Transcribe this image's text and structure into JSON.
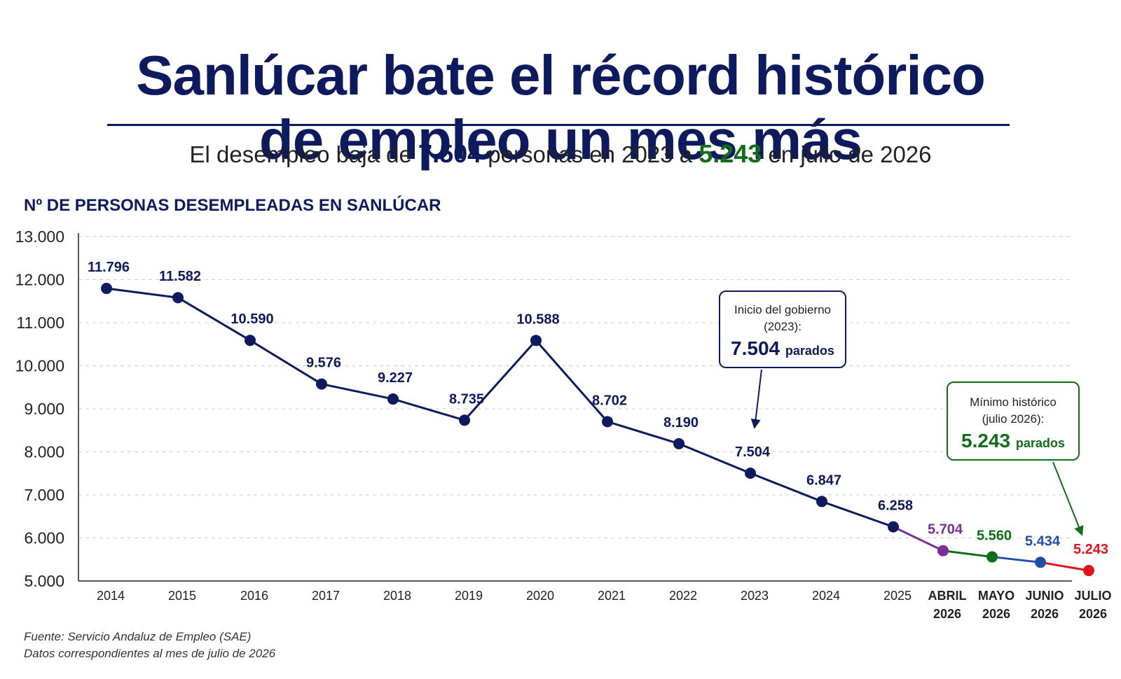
{
  "title": {
    "line1": "Sanlúcar bate el récord histórico",
    "line2": "de empleo un mes más"
  },
  "subtitle": {
    "part1": "El desempleo baja de ",
    "value1": "7.504",
    "part2": " personas en 2023 a ",
    "value2": "5.243",
    "part3": " en julio de 2026"
  },
  "chart_label": "Nº DE PERSONAS DESEMPLEADAS EN SANLÚCAR",
  "colors": {
    "navy": "#0d1b5e",
    "purple": "#7b2d9b",
    "green": "#0f6e17",
    "blue": "#1f4fa8",
    "red": "#e0141f"
  },
  "chart_data": {
    "type": "line",
    "ylim": [
      5000,
      13000
    ],
    "y_ticks": [
      "13.000",
      "12.000",
      "11.000",
      "10.000",
      "9.000",
      "8.000",
      "7.000",
      "6.000",
      "5.000"
    ],
    "y_tick_values": [
      13000,
      12000,
      11000,
      10000,
      9000,
      8000,
      7000,
      6000,
      5000
    ],
    "grid": "horizontal dashed",
    "points": [
      {
        "label": [
          "2014"
        ],
        "value": 11796,
        "value_label": "11.796",
        "color": "#0d1b5e"
      },
      {
        "label": [
          "2015"
        ],
        "value": 11582,
        "value_label": "11.582",
        "color": "#0d1b5e"
      },
      {
        "label": [
          "2016"
        ],
        "value": 10590,
        "value_label": "10.590",
        "color": "#0d1b5e"
      },
      {
        "label": [
          "2017"
        ],
        "value": 9576,
        "value_label": "9.576",
        "color": "#0d1b5e"
      },
      {
        "label": [
          "2018"
        ],
        "value": 9227,
        "value_label": "9.227",
        "color": "#0d1b5e"
      },
      {
        "label": [
          "2019"
        ],
        "value": 8735,
        "value_label": "8.735",
        "color": "#0d1b5e"
      },
      {
        "label": [
          "2020"
        ],
        "value": 10588,
        "value_label": "10.588",
        "color": "#0d1b5e"
      },
      {
        "label": [
          "2021"
        ],
        "value": 8702,
        "value_label": "8.702",
        "color": "#0d1b5e"
      },
      {
        "label": [
          "2022"
        ],
        "value": 8190,
        "value_label": "8.190",
        "color": "#0d1b5e"
      },
      {
        "label": [
          "2023"
        ],
        "value": 7504,
        "value_label": "7.504",
        "color": "#0d1b5e"
      },
      {
        "label": [
          "2024"
        ],
        "value": 6847,
        "value_label": "6.847",
        "color": "#0d1b5e"
      },
      {
        "label": [
          "2025"
        ],
        "value": 6258,
        "value_label": "6.258",
        "color": "#0d1b5e"
      },
      {
        "label": [
          "ABRIL",
          "2026"
        ],
        "value": 5704,
        "value_label": "5.704",
        "color": "#7b2d9b"
      },
      {
        "label": [
          "MAYO",
          "2026"
        ],
        "value": 5560,
        "value_label": "5.560",
        "color": "#0f6e17"
      },
      {
        "label": [
          "JUNIO",
          "2026"
        ],
        "value": 5434,
        "value_label": "5.434",
        "color": "#1f4fa8"
      },
      {
        "label": [
          "JULIO",
          "2026"
        ],
        "value": 5243,
        "value_label": "5.243",
        "color": "#e0141f"
      }
    ],
    "annotations": [
      {
        "target": "2023",
        "lines": [
          "Inicio del gobierno",
          "(2023):"
        ],
        "value": "7.504",
        "unit": "parados",
        "color": "#0d1b5e"
      },
      {
        "target": "JULIO 2026",
        "lines": [
          "Mínimo histórico",
          "(julio 2026):"
        ],
        "value": "5.243",
        "unit": "parados",
        "color": "#0f6e17"
      }
    ]
  },
  "source": {
    "line1": "Fuente: Servicio Andaluz de Empleo (SAE)",
    "line2": "Datos correspondientes al mes de julio de 2026"
  }
}
